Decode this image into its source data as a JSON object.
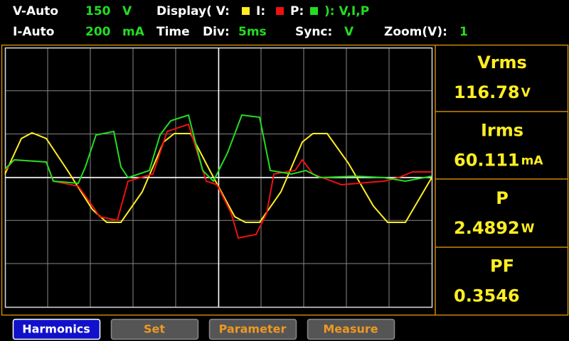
{
  "header": {
    "row1": {
      "mode": "V-Auto",
      "range": 150,
      "unit": "V",
      "display_label": "Display( V:",
      "i_label": "I:",
      "p_label": "P:",
      "display_value": "): V,I,P"
    },
    "row2": {
      "mode": "I-Auto",
      "range": 200,
      "unit": "mA",
      "time_label": "Time",
      "div_label": "Div:",
      "div_value": "5ms",
      "sync_label": "Sync:",
      "sync_value": "V",
      "zoom_label": "Zoom(V):",
      "zoom_value": 1
    }
  },
  "readings": [
    {
      "label": "Vrms",
      "value": 116.78,
      "unit": "V"
    },
    {
      "label": "Irms",
      "value": 60.111,
      "unit": "mA"
    },
    {
      "label": "P",
      "value": 2.4892,
      "unit": "W"
    },
    {
      "label": "PF",
      "value": 0.3546
    }
  ],
  "buttons": [
    "Harmonics",
    "Set",
    "Parameter",
    "Measure"
  ]
}
